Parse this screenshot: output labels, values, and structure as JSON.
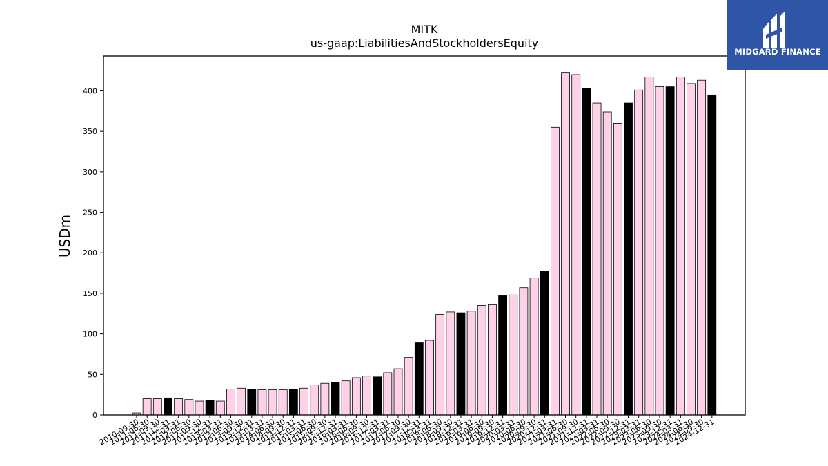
{
  "brand": {
    "name": "MIDGARD FINANCE",
    "bg": "#2f56a6",
    "icon": "midgard-logo-icon"
  },
  "chart_data": {
    "type": "bar",
    "title": "MITK",
    "subtitle": "us-gaap:LiabilitiesAndStockholdersEquity",
    "xlabel": "",
    "ylabel": "USDm",
    "ylim": [
      0,
      443
    ],
    "yticks": [
      0,
      50,
      100,
      150,
      200,
      250,
      300,
      350,
      400
    ],
    "grid": false,
    "colors": {
      "quarter": "#ffd1e8",
      "fiscal_year_end": "#000000",
      "edge": "#000000"
    },
    "categories": [
      "2010-09-30",
      "2011-06-30",
      "2011-09-30",
      "2011-12-31",
      "2012-03-31",
      "2012-06-30",
      "2012-09-30",
      "2012-12-31",
      "2013-03-31",
      "2013-06-30",
      "2013-09-30",
      "2013-12-31",
      "2014-03-31",
      "2014-06-30",
      "2014-09-30",
      "2014-12-31",
      "2015-03-31",
      "2015-06-30",
      "2015-09-30",
      "2015-12-31",
      "2016-03-31",
      "2016-06-30",
      "2016-09-30",
      "2016-12-31",
      "2017-03-31",
      "2017-06-30",
      "2017-09-30",
      "2017-12-31",
      "2018-03-31",
      "2018-06-30",
      "2018-09-30",
      "2018-12-31",
      "2019-03-31",
      "2019-06-30",
      "2019-09-30",
      "2019-12-31",
      "2020-03-31",
      "2020-06-30",
      "2020-09-30",
      "2020-12-31",
      "2021-03-31",
      "2021-06-30",
      "2021-09-30",
      "2021-12-31",
      "2022-03-31",
      "2022-06-30",
      "2022-09-30",
      "2022-12-31",
      "2023-03-31",
      "2023-06-30",
      "2023-09-30",
      "2023-12-31",
      "2024-03-31",
      "2024-06-30",
      "2024-09-30",
      "2024-12-31"
    ],
    "values": [
      2.5,
      20,
      20,
      21,
      20,
      19,
      17,
      18,
      17,
      32,
      33,
      32,
      31,
      31,
      31,
      32,
      33,
      37,
      39,
      40,
      42,
      46,
      48,
      47,
      52,
      57,
      71,
      89,
      92,
      124,
      127,
      126,
      128,
      135,
      136,
      147,
      148,
      157,
      169,
      177,
      355,
      422,
      420,
      403,
      385,
      374,
      360,
      385,
      401,
      417,
      405,
      405,
      417,
      409,
      413,
      395
    ],
    "fiscal_year_end": [
      false,
      false,
      false,
      true,
      false,
      false,
      false,
      true,
      false,
      false,
      false,
      true,
      false,
      false,
      false,
      true,
      false,
      false,
      false,
      true,
      false,
      false,
      false,
      true,
      false,
      false,
      false,
      true,
      false,
      false,
      false,
      true,
      false,
      false,
      false,
      true,
      false,
      false,
      false,
      true,
      false,
      false,
      false,
      true,
      false,
      false,
      false,
      true,
      false,
      false,
      false,
      true,
      false,
      false,
      false,
      true
    ]
  }
}
